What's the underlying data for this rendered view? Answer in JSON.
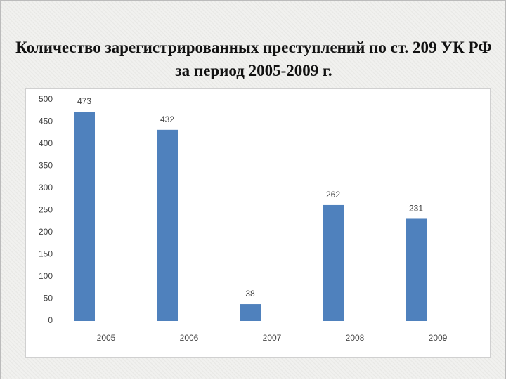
{
  "chart_data": {
    "type": "bar",
    "title": "Количество зарегистрированных преступлений по ст. 209 УК РФ за период 2005-2009 г.",
    "categories": [
      "2005",
      "2006",
      "2007",
      "2008",
      "2009"
    ],
    "values": [
      473,
      432,
      38,
      262,
      231
    ],
    "color": "#4f81bd",
    "ylim": [
      0,
      500
    ],
    "yticks": [
      0,
      50,
      100,
      150,
      200,
      250,
      300,
      350,
      400,
      450,
      500
    ],
    "grid": false
  }
}
